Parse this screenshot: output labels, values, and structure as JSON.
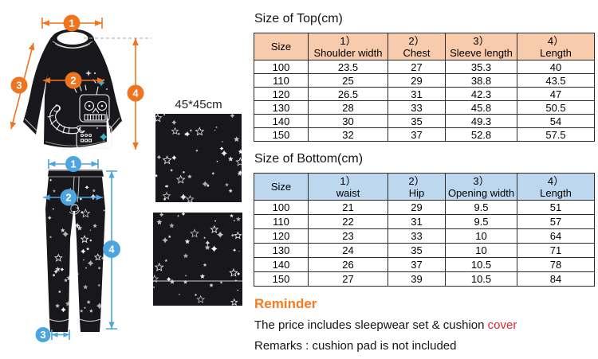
{
  "colors": {
    "marker_orange": "#EE7420",
    "marker_blue": "#4CA5DE",
    "garment_black": "#17171C",
    "teal_accent": "#3FB0CE",
    "header_peach": "#F8CBAD",
    "header_blue": "#BDD7EE",
    "reminder_orange": "#F47B20",
    "highlight_red": "#DE2430",
    "table_border": "#2B2B2B"
  },
  "illustration": {
    "cushion_label": "45*45cm",
    "top_markers": [
      "1",
      "2",
      "3",
      "4"
    ],
    "bottom_markers": [
      "1",
      "2",
      "3",
      "4"
    ]
  },
  "top_table": {
    "title": "Size of Top(cm)",
    "columns": [
      {
        "num": "",
        "label": "Size"
      },
      {
        "num": "1）",
        "label": "Shoulder width"
      },
      {
        "num": "2）",
        "label": "Chest"
      },
      {
        "num": "3）",
        "label": "Sleeve length"
      },
      {
        "num": "4）",
        "label": "Length"
      }
    ],
    "rows": [
      [
        "100",
        "23.5",
        "27",
        "35.3",
        "40"
      ],
      [
        "110",
        "25",
        "29",
        "38.8",
        "43.5"
      ],
      [
        "120",
        "26.5",
        "31",
        "42.3",
        "47"
      ],
      [
        "130",
        "28",
        "33",
        "45.8",
        "50.5"
      ],
      [
        "140",
        "30",
        "35",
        "49.3",
        "54"
      ],
      [
        "150",
        "32",
        "37",
        "52.8",
        "57.5"
      ]
    ]
  },
  "bottom_table": {
    "title": "Size of Bottom(cm)",
    "columns": [
      {
        "num": "",
        "label": "Size"
      },
      {
        "num": "1）",
        "label": "waist"
      },
      {
        "num": "2）",
        "label": "Hip"
      },
      {
        "num": "3）",
        "label": "Opening width"
      },
      {
        "num": "4）",
        "label": "Length"
      }
    ],
    "rows": [
      [
        "100",
        "21",
        "29",
        "9.5",
        "51"
      ],
      [
        "110",
        "22",
        "31",
        "9.5",
        "57"
      ],
      [
        "120",
        "23",
        "33",
        "10",
        "64"
      ],
      [
        "130",
        "24",
        "35",
        "10",
        "71"
      ],
      [
        "140",
        "26",
        "37",
        "10.5",
        "78"
      ],
      [
        "150",
        "27",
        "39",
        "10.5",
        "84"
      ]
    ]
  },
  "reminder": {
    "heading": "Reminder",
    "line1_prefix": "The price includes sleepwear set & cushion ",
    "line1_highlight": "cover",
    "line2": "Remarks : cushion pad is not included"
  }
}
